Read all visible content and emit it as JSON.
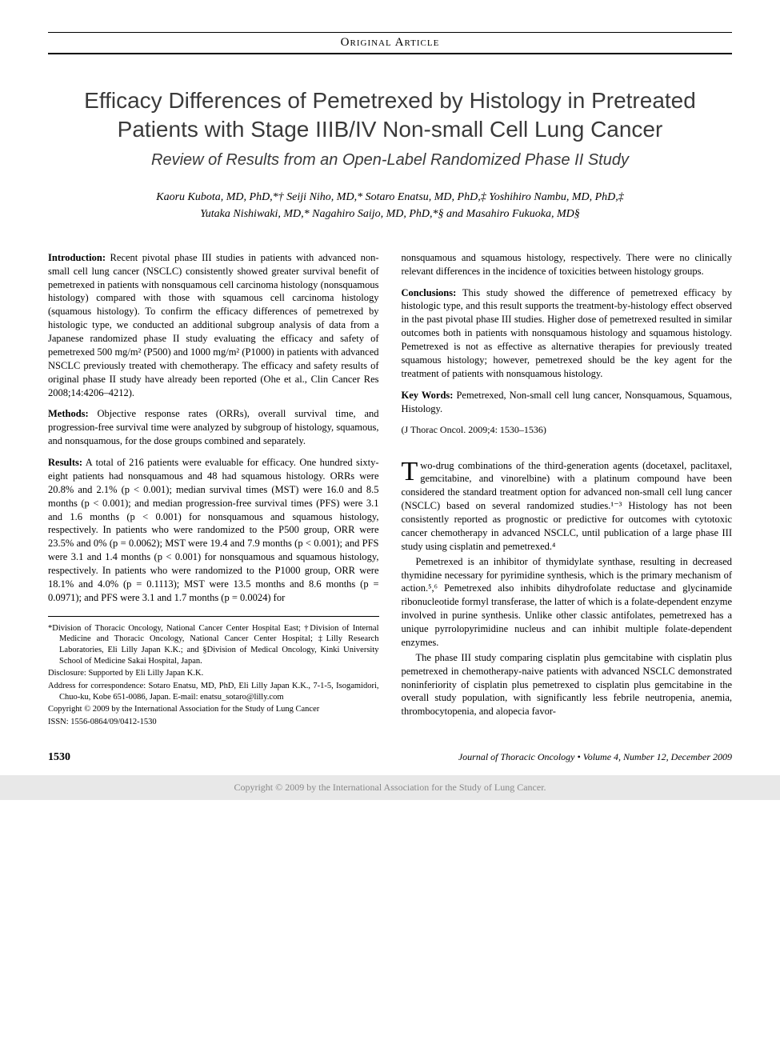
{
  "header": {
    "section_label": "Original Article"
  },
  "article": {
    "title": "Efficacy Differences of Pemetrexed by Histology in Pretreated Patients with Stage IIIB/IV Non-small Cell Lung Cancer",
    "subtitle": "Review of Results from an Open-Label Randomized Phase II Study",
    "authors_line1": "Kaoru Kubota, MD, PhD,*† Seiji Niho, MD,* Sotaro Enatsu, MD, PhD,‡ Yoshihiro Nambu, MD, PhD,‡",
    "authors_line2": "Yutaka Nishiwaki, MD,* Nagahiro Saijo, MD, PhD,*§ and Masahiro Fukuoka, MD§"
  },
  "abstract": {
    "introduction_label": "Introduction:",
    "introduction_text": " Recent pivotal phase III studies in patients with advanced non-small cell lung cancer (NSCLC) consistently showed greater survival benefit of pemetrexed in patients with nonsquamous cell carcinoma histology (nonsquamous histology) compared with those with squamous cell carcinoma histology (squamous histology). To confirm the efficacy differences of pemetrexed by histologic type, we conducted an additional subgroup analysis of data from a Japanese randomized phase II study evaluating the efficacy and safety of pemetrexed 500 mg/m² (P500) and 1000 mg/m² (P1000) in patients with advanced NSCLC previously treated with chemotherapy. The efficacy and safety results of original phase II study have already been reported (Ohe et al., Clin Cancer Res 2008;14:4206–4212).",
    "methods_label": "Methods:",
    "methods_text": " Objective response rates (ORRs), overall survival time, and progression-free survival time were analyzed by subgroup of histology, squamous, and nonsquamous, for the dose groups combined and separately.",
    "results_label": "Results:",
    "results_text": " A total of 216 patients were evaluable for efficacy. One hundred sixty-eight patients had nonsquamous and 48 had squamous histology. ORRs were 20.8% and 2.1% (p < 0.001); median survival times (MST) were 16.0 and 8.5 months (p < 0.001); and median progression-free survival times (PFS) were 3.1 and 1.6 months (p < 0.001) for nonsquamous and squamous histology, respectively. In patients who were randomized to the P500 group, ORR were 23.5% and 0% (p = 0.0062); MST were 19.4 and 7.9 months (p < 0.001); and PFS were 3.1 and 1.4 months (p < 0.001) for nonsquamous and squamous histology, respectively. In patients who were randomized to the P1000 group, ORR were 18.1% and 4.0% (p = 0.1113); MST were 13.5 months and 8.6 months (p = 0.0971); and PFS were 3.1 and 1.7 months (p = 0.0024) for",
    "results_cont": "nonsquamous and squamous histology, respectively. There were no clinically relevant differences in the incidence of toxicities between histology groups.",
    "conclusions_label": "Conclusions:",
    "conclusions_text": " This study showed the difference of pemetrexed efficacy by histologic type, and this result supports the treatment-by-histology effect observed in the past pivotal phase III studies. Higher dose of pemetrexed resulted in similar outcomes both in patients with nonsquamous histology and squamous histology. Pemetrexed is not as effective as alternative therapies for previously treated squamous histology; however, pemetrexed should be the key agent for the treatment of patients with nonsquamous histology.",
    "keywords_label": "Key Words:",
    "keywords_text": " Pemetrexed, Non-small cell lung cancer, Nonsquamous, Squamous, Histology.",
    "citation": "(J Thorac Oncol. 2009;4: 1530–1536)"
  },
  "body": {
    "p1": "Two-drug combinations of the third-generation agents (docetaxel, paclitaxel, gemcitabine, and vinorelbine) with a platinum compound have been considered the standard treatment option for advanced non-small cell lung cancer (NSCLC) based on several randomized studies.¹⁻³ Histology has not been consistently reported as prognostic or predictive for outcomes with cytotoxic cancer chemotherapy in advanced NSCLC, until publication of a large phase III study using cisplatin and pemetrexed.⁴",
    "p2": "Pemetrexed is an inhibitor of thymidylate synthase, resulting in decreased thymidine necessary for pyrimidine synthesis, which is the primary mechanism of action.⁵,⁶ Pemetrexed also inhibits dihydrofolate reductase and glycinamide ribonucleotide formyl transferase, the latter of which is a folate-dependent enzyme involved in purine synthesis. Unlike other classic antifolates, pemetrexed has a unique pyrrolopyrimidine nucleus and can inhibit multiple folate-dependent enzymes.",
    "p3": "The phase III study comparing cisplatin plus gemcitabine with cisplatin plus pemetrexed in chemotherapy-naive patients with advanced NSCLC demonstrated noninferiority of cisplatin plus pemetrexed to cisplatin plus gemcitabine in the overall study population, with significantly less febrile neutropenia, anemia, thrombocytopenia, and alopecia favor-"
  },
  "affiliations": {
    "a1": "*Division of Thoracic Oncology, National Cancer Center Hospital East; †Division of Internal Medicine and Thoracic Oncology, National Cancer Center Hospital; ‡Lilly Research Laboratories, Eli Lilly Japan K.K.; and §Division of Medical Oncology, Kinki University School of Medicine Sakai Hospital, Japan.",
    "a2": "Disclosure: Supported by Eli Lilly Japan K.K.",
    "a3": "Address for correspondence: Sotaro Enatsu, MD, PhD, Eli Lilly Japan K.K., 7-1-5, Isogamidori, Chuo-ku, Kobe 651-0086, Japan. E-mail: enatsu_sotaro@lilly.com",
    "a4": "Copyright © 2009 by the International Association for the Study of Lung Cancer",
    "a5": "ISSN: 1556-0864/09/0412-1530"
  },
  "footer": {
    "page_number": "1530",
    "journal": "Journal of Thoracic Oncology • Volume 4, Number 12, December 2009",
    "copyright": "Copyright © 2009 by the International Association for the Study of Lung Cancer."
  }
}
